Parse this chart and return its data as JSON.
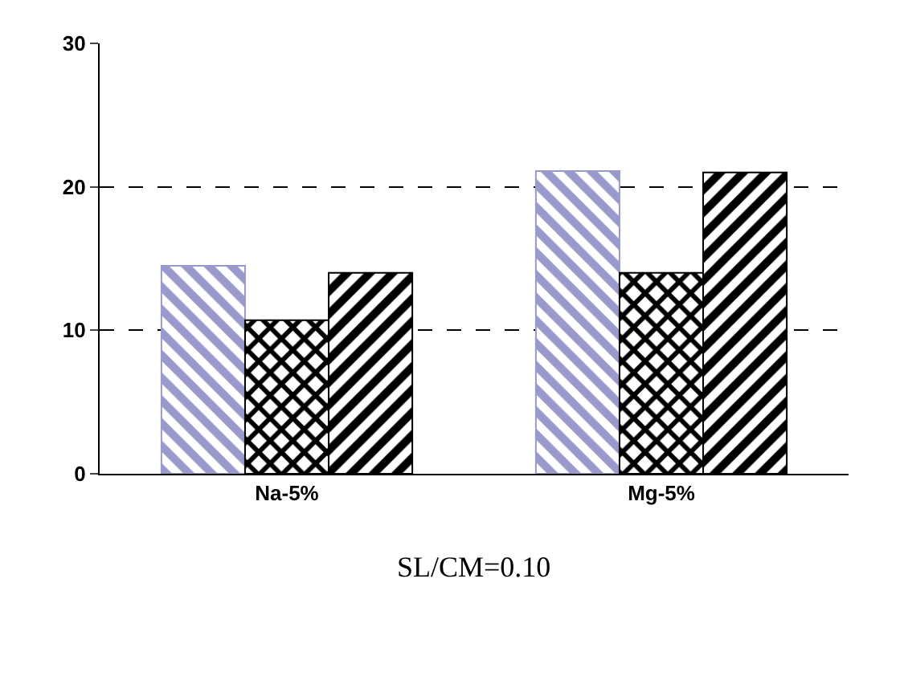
{
  "chart_data": {
    "type": "bar",
    "xlabel": "SL/CM=0.10",
    "categories": [
      "Na-5%",
      "Mg-5%"
    ],
    "series": [
      {
        "color": "#9999cc",
        "values": [
          14.5,
          21.1
        ]
      },
      {
        "color": "#000000",
        "values": [
          10.7,
          14.0
        ]
      },
      {
        "color": "#000000",
        "values": [
          14.0,
          21.0
        ]
      }
    ],
    "ylim": [
      0,
      30
    ],
    "yticks": [
      0,
      10,
      20,
      30
    ],
    "grid": "y",
    "legend": false
  }
}
